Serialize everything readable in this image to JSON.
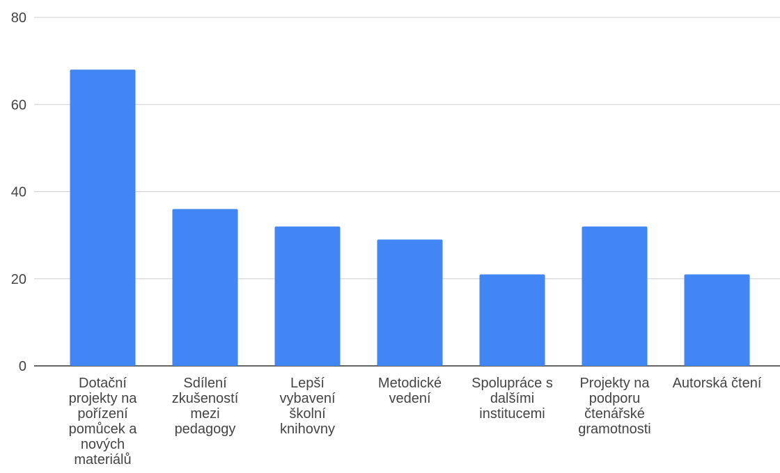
{
  "chart_data": {
    "type": "bar",
    "title": "",
    "xlabel": "",
    "ylabel": "",
    "ylim": [
      0,
      80
    ],
    "yticks": [
      0,
      20,
      40,
      60,
      80
    ],
    "grid": true,
    "bar_color": "#4285F4",
    "categories": [
      "Dotační projekty na pořízení pomůcek a nových materiálů",
      "Sdílení zkušeností mezi pedagogy",
      "Lepší vybavení školní knihovny",
      "Metodické vedení",
      "Spolupráce s dalšími institucemi",
      "Projekty na podporu čtenářské gramotnosti",
      "Autorská čtení"
    ],
    "values": [
      68,
      36,
      32,
      29,
      21,
      32,
      21
    ]
  }
}
